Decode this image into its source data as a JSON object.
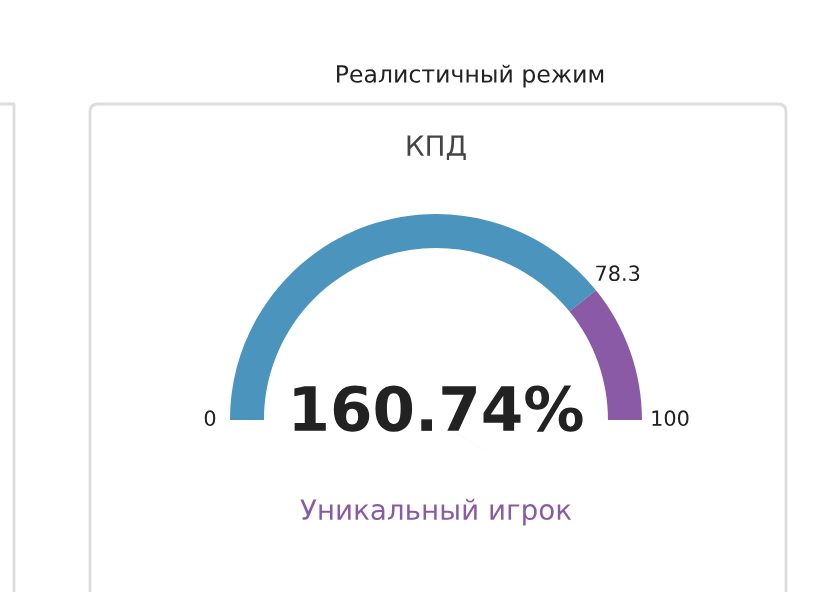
{
  "chart_data": {
    "type": "donut",
    "title": "Реалистичный режим",
    "subtitle": "КПД",
    "categories": [
      null,
      null
    ],
    "values": [
      78.3,
      21.7
    ],
    "colors": [
      "#4a94be",
      "#8a5aa6"
    ],
    "annotations": [
      "0",
      "78.3",
      "100",
      "160.74%",
      "Уникальный игрок"
    ]
  }
}
